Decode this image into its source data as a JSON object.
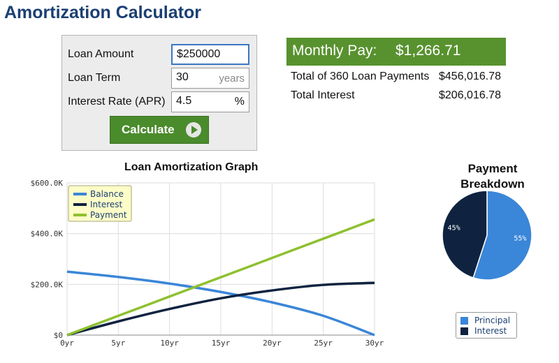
{
  "header": {
    "title": "Amortization Calculator"
  },
  "form": {
    "loan_amount_label": "Loan Amount",
    "loan_amount_value": "$250000",
    "loan_term_label": "Loan Term",
    "loan_term_value": "30",
    "loan_term_unit": "years",
    "interest_rate_label": "Interest Rate (APR)",
    "interest_rate_value": "4.5",
    "interest_rate_unit": "%",
    "calculate_label": "Calculate"
  },
  "results": {
    "monthly_pay_label": "Monthly Pay:",
    "monthly_pay_value": "$1,266.71",
    "total_payments_label": "Total of 360 Loan Payments",
    "total_payments_value": "$456,016.78",
    "total_interest_label": "Total Interest",
    "total_interest_value": "$206,016.78"
  },
  "colors": {
    "title": "#1b3f73",
    "green": "#58922f",
    "balance": "#3a86d8",
    "interest": "#0f2340",
    "payment": "#8ec02f"
  },
  "chart_data": [
    {
      "type": "line",
      "title": "Loan Amortization Graph",
      "x": [
        0,
        5,
        10,
        15,
        20,
        25,
        30
      ],
      "x_tick_labels": [
        "0yr",
        "5yr",
        "10yr",
        "15yr",
        "20yr",
        "25yr",
        "30yr"
      ],
      "y_tick_labels": [
        "$0",
        "$200.0K",
        "$400.0K",
        "$600.0K"
      ],
      "y_ticks": [
        0,
        200000,
        400000,
        600000
      ],
      "ylim": [
        0,
        600000
      ],
      "xlim": [
        0,
        30
      ],
      "grid": true,
      "legend_position": "top-left",
      "series": [
        {
          "name": "Balance",
          "color": "#3a86d8",
          "values": [
            250000,
            229000,
            203000,
            170000,
            129000,
            76000,
            0
          ]
        },
        {
          "name": "Interest",
          "color": "#0f2340",
          "values": [
            0,
            54000,
            103000,
            145000,
            176000,
            198000,
            206000
          ]
        },
        {
          "name": "Payment",
          "color": "#8ec02f",
          "values": [
            0,
            76000,
            152000,
            228000,
            304000,
            380000,
            456000
          ]
        }
      ]
    },
    {
      "type": "pie",
      "title": "Payment Breakdown",
      "categories": [
        "Principal",
        "Interest"
      ],
      "values": [
        55,
        45
      ],
      "value_labels": [
        "55%",
        "45%"
      ],
      "colors": [
        "#3a86d8",
        "#0f2340"
      ],
      "legend_position": "bottom"
    }
  ]
}
